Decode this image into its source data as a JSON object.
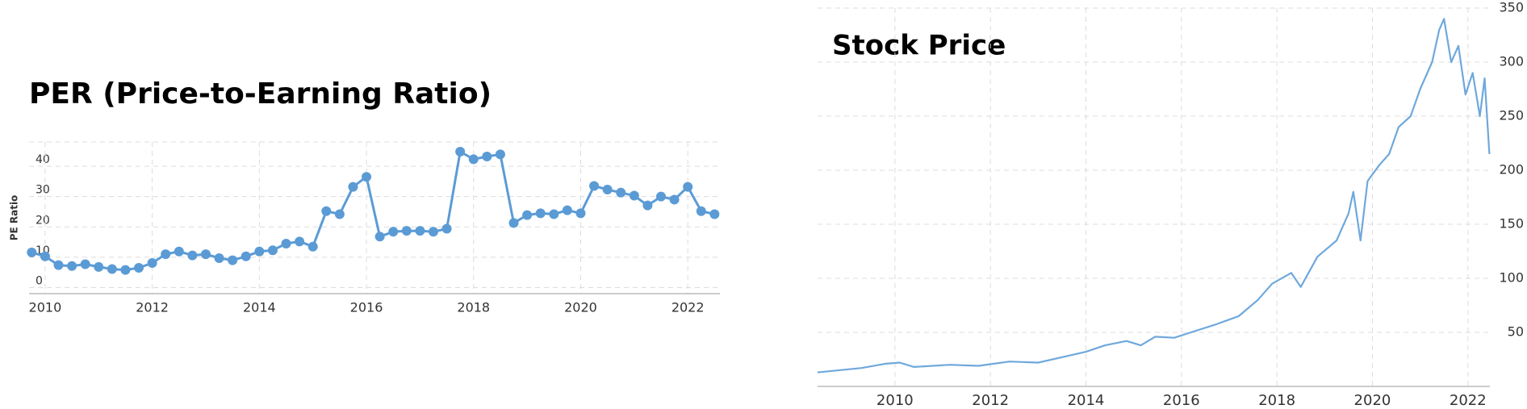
{
  "chart_data": [
    {
      "type": "line",
      "title": "PER (Price-to-Earning Ratio)",
      "ylabel": "PE Ratio",
      "color": "#5b9bd5",
      "markers": true,
      "grid": true,
      "y_axis_side": "left",
      "x": [
        2009.75,
        2010.0,
        2010.25,
        2010.5,
        2010.75,
        2011.0,
        2011.25,
        2011.5,
        2011.75,
        2012.0,
        2012.25,
        2012.5,
        2012.75,
        2013.0,
        2013.25,
        2013.5,
        2013.75,
        2014.0,
        2014.25,
        2014.5,
        2014.75,
        2015.0,
        2015.25,
        2015.5,
        2015.75,
        2016.0,
        2016.25,
        2016.5,
        2016.75,
        2017.0,
        2017.25,
        2017.5,
        2017.75,
        2018.0,
        2018.25,
        2018.5,
        2018.75,
        2019.0,
        2019.25,
        2019.5,
        2019.75,
        2020.0,
        2020.25,
        2020.5,
        2020.75,
        2021.0,
        2021.25,
        2021.5,
        2021.75,
        2022.0,
        2022.25,
        2022.5
      ],
      "values": [
        11.6,
        10.3,
        7.4,
        7.1,
        7.7,
        6.8,
        6.1,
        5.8,
        6.5,
        8.1,
        11,
        11.9,
        10.6,
        11,
        9.7,
        9,
        10.3,
        11.9,
        12.3,
        14.5,
        15.2,
        13.5,
        25.2,
        24.2,
        33.2,
        36.5,
        16.8,
        18.4,
        18.7,
        18.7,
        18.4,
        19.4,
        44.8,
        42.3,
        43.2,
        43.9,
        21.3,
        23.9,
        24.5,
        24.2,
        25.5,
        24.5,
        33.5,
        32.3,
        31.3,
        30.3,
        27.1,
        30,
        29,
        33.2,
        25.2,
        24.2
      ],
      "xlim": [
        2009.7,
        2022.6
      ],
      "xticks": [
        2010,
        2012,
        2014,
        2016,
        2018,
        2020,
        2022
      ],
      "ylim": [
        -2,
        48
      ],
      "yticks": [
        0,
        10,
        20,
        30,
        40
      ]
    },
    {
      "type": "line",
      "title": "Stock Price",
      "color": "#6fa8dc",
      "markers": false,
      "grid": true,
      "y_axis_side": "right",
      "x": [
        2008.38,
        2009.3,
        2009.8,
        2010.1,
        2010.4,
        2011.15,
        2011.75,
        2012.4,
        2013.0,
        2013.5,
        2014.0,
        2014.4,
        2014.85,
        2015.15,
        2015.45,
        2015.85,
        2016.2,
        2016.7,
        2017.2,
        2017.6,
        2017.9,
        2018.3,
        2018.5,
        2018.85,
        2019.25,
        2019.5,
        2019.6,
        2019.75,
        2019.9,
        2020.15,
        2020.35,
        2020.55,
        2020.8,
        2021.0,
        2021.25,
        2021.4,
        2021.5,
        2021.65,
        2021.8,
        2021.95,
        2022.1,
        2022.25,
        2022.35,
        2022.45
      ],
      "values": [
        13,
        17,
        21,
        22,
        18,
        20,
        19,
        23,
        22,
        27,
        32,
        38,
        42,
        38,
        46,
        45,
        50,
        57,
        65,
        80,
        95,
        105,
        92,
        120,
        135,
        160,
        180,
        135,
        190,
        205,
        215,
        240,
        250,
        275,
        300,
        330,
        340,
        300,
        315,
        270,
        290,
        250,
        285,
        215
      ],
      "xlim": [
        2008.38,
        2022.46
      ],
      "xticks": [
        2010,
        2012,
        2014,
        2016,
        2018,
        2020,
        2022
      ],
      "ylim": [
        0,
        350
      ],
      "yticks": [
        50,
        100,
        150,
        200,
        250,
        300,
        350
      ]
    }
  ]
}
